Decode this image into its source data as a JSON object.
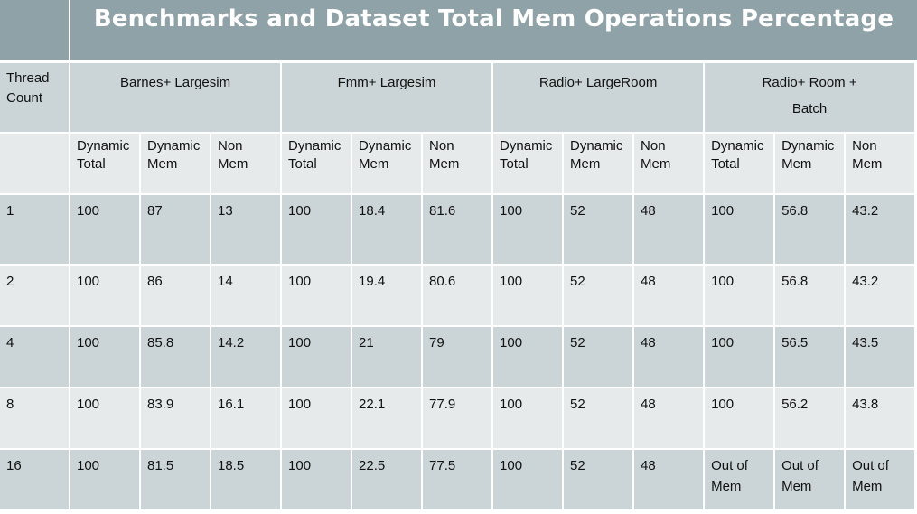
{
  "title": "Benchmarks and Dataset Total Mem Operations Percentage",
  "thread_header": [
    "Thread",
    "Count"
  ],
  "groups": [
    {
      "name": [
        "Barnes+ Largesim"
      ]
    },
    {
      "name": [
        "Fmm+ Largesim"
      ]
    },
    {
      "name": [
        "Radio+ LargeRoom"
      ]
    },
    {
      "name": [
        "Radio+ Room +",
        "Batch"
      ]
    }
  ],
  "subheaders": [
    [
      "Dynamic",
      "Total"
    ],
    [
      "Dynamic",
      "Mem"
    ],
    [
      "Non",
      "Mem"
    ]
  ],
  "rows": [
    {
      "thread": "1",
      "values": [
        [
          "100"
        ],
        [
          "87"
        ],
        [
          "13"
        ],
        [
          "100"
        ],
        [
          "18.4"
        ],
        [
          "81.6"
        ],
        [
          "100"
        ],
        [
          "52"
        ],
        [
          "48"
        ],
        [
          "100"
        ],
        [
          "56.8"
        ],
        [
          "43.2"
        ]
      ]
    },
    {
      "thread": "2",
      "values": [
        [
          "100"
        ],
        [
          "86"
        ],
        [
          "14"
        ],
        [
          "100"
        ],
        [
          "19.4"
        ],
        [
          "80.6"
        ],
        [
          "100"
        ],
        [
          "52"
        ],
        [
          "48"
        ],
        [
          "100"
        ],
        [
          "56.8"
        ],
        [
          "43.2"
        ]
      ]
    },
    {
      "thread": "4",
      "values": [
        [
          "100"
        ],
        [
          "85.8"
        ],
        [
          "14.2"
        ],
        [
          "100"
        ],
        [
          "21"
        ],
        [
          "79"
        ],
        [
          "100"
        ],
        [
          "52"
        ],
        [
          "48"
        ],
        [
          "100"
        ],
        [
          "56.5"
        ],
        [
          "43.5"
        ]
      ]
    },
    {
      "thread": "8",
      "values": [
        [
          "100"
        ],
        [
          "83.9"
        ],
        [
          "16.1"
        ],
        [
          "100"
        ],
        [
          "22.1"
        ],
        [
          "77.9"
        ],
        [
          "100"
        ],
        [
          "52"
        ],
        [
          "48"
        ],
        [
          "100"
        ],
        [
          "56.2"
        ],
        [
          "43.8"
        ]
      ]
    },
    {
      "thread": "16",
      "values": [
        [
          "100"
        ],
        [
          "81.5"
        ],
        [
          "18.5"
        ],
        [
          "100"
        ],
        [
          "22.5"
        ],
        [
          "77.5"
        ],
        [
          "100"
        ],
        [
          "52"
        ],
        [
          "48"
        ],
        [
          "Out of",
          "Mem"
        ],
        [
          "Out of",
          "Mem"
        ],
        [
          "Out of",
          "Mem"
        ]
      ]
    }
  ],
  "colors": {
    "title_bg": "#8fa2a8",
    "title_text": "#ffffff",
    "cell_dark": "#cbd4d6",
    "cell_light": "#e6eaeb"
  }
}
